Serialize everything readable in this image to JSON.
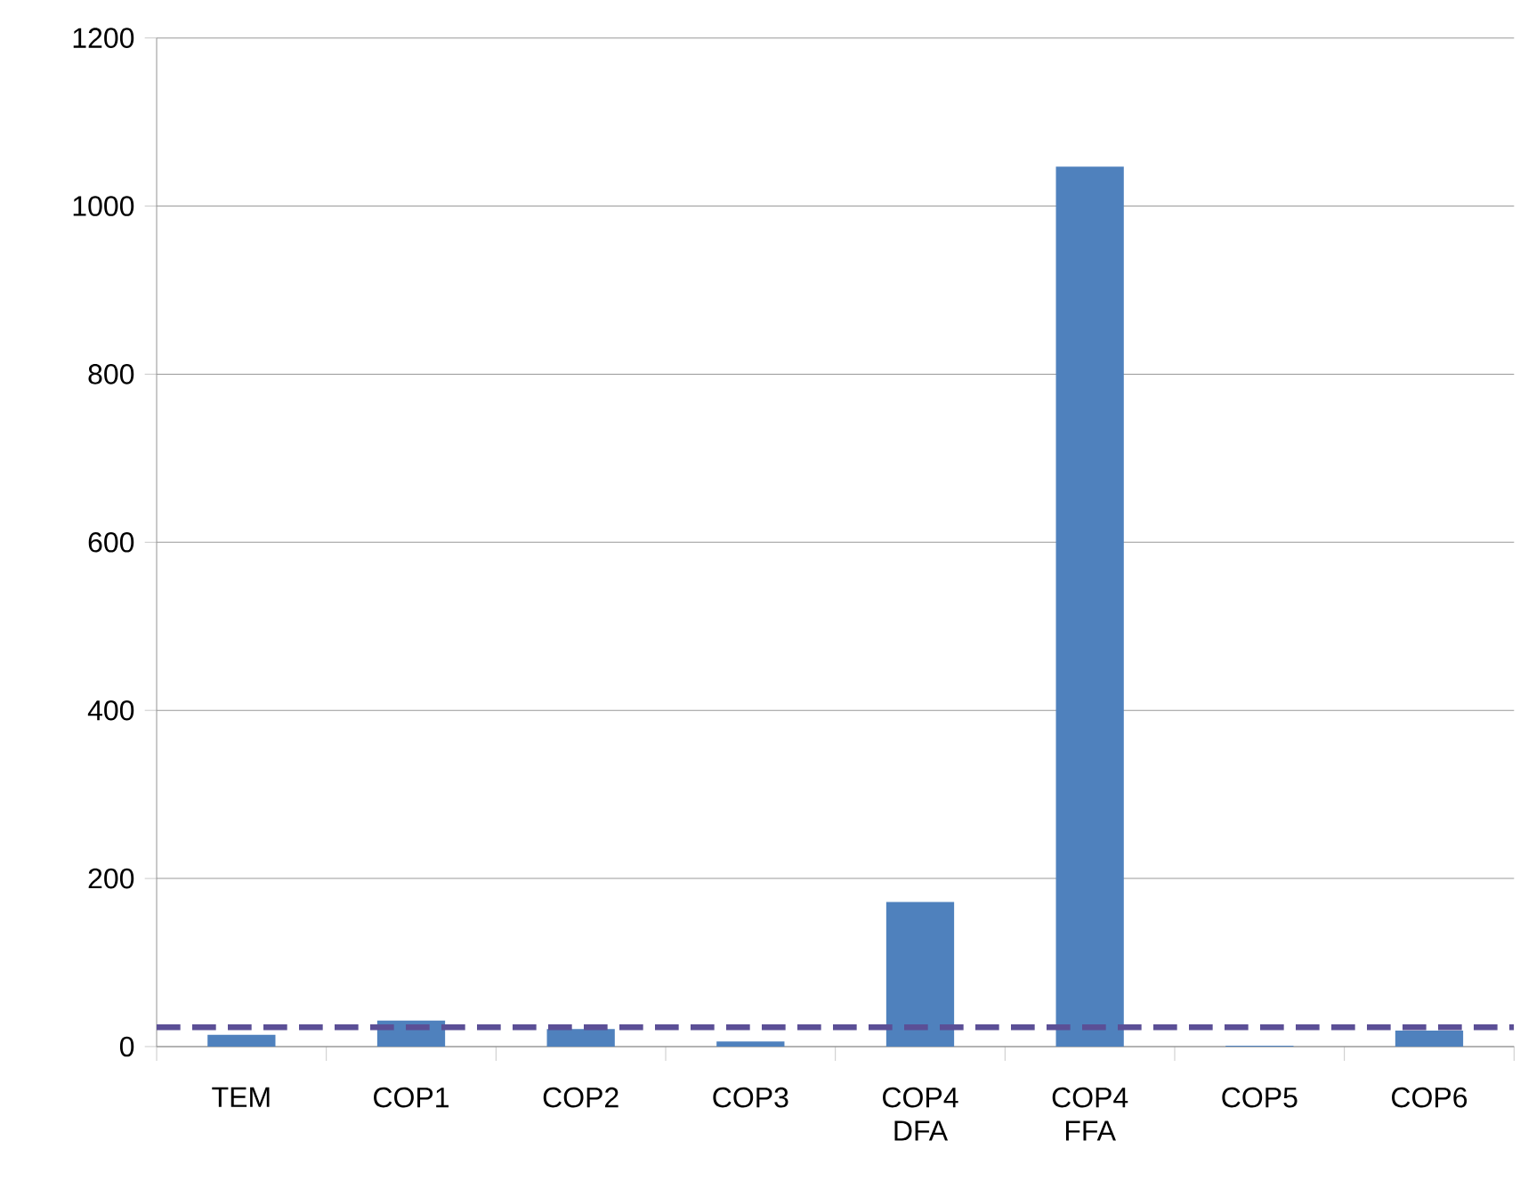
{
  "chart_data": {
    "type": "bar",
    "categories": [
      "TEM",
      "COP1",
      "COP2",
      "COP3",
      "COP4 DFA",
      "COP4 FFA",
      "COP5",
      "COP6"
    ],
    "values": [
      14,
      31,
      21,
      6,
      172,
      1047,
      1,
      19
    ],
    "color": "#4f81bd",
    "ylim": [
      0,
      1200
    ],
    "yticks": [
      0,
      200,
      400,
      600,
      800,
      1000,
      1200
    ],
    "grid": "y",
    "ref_lines": [
      {
        "axis": "y",
        "value": 23,
        "color": "#5b4f96",
        "line_style": "dashed"
      }
    ]
  }
}
